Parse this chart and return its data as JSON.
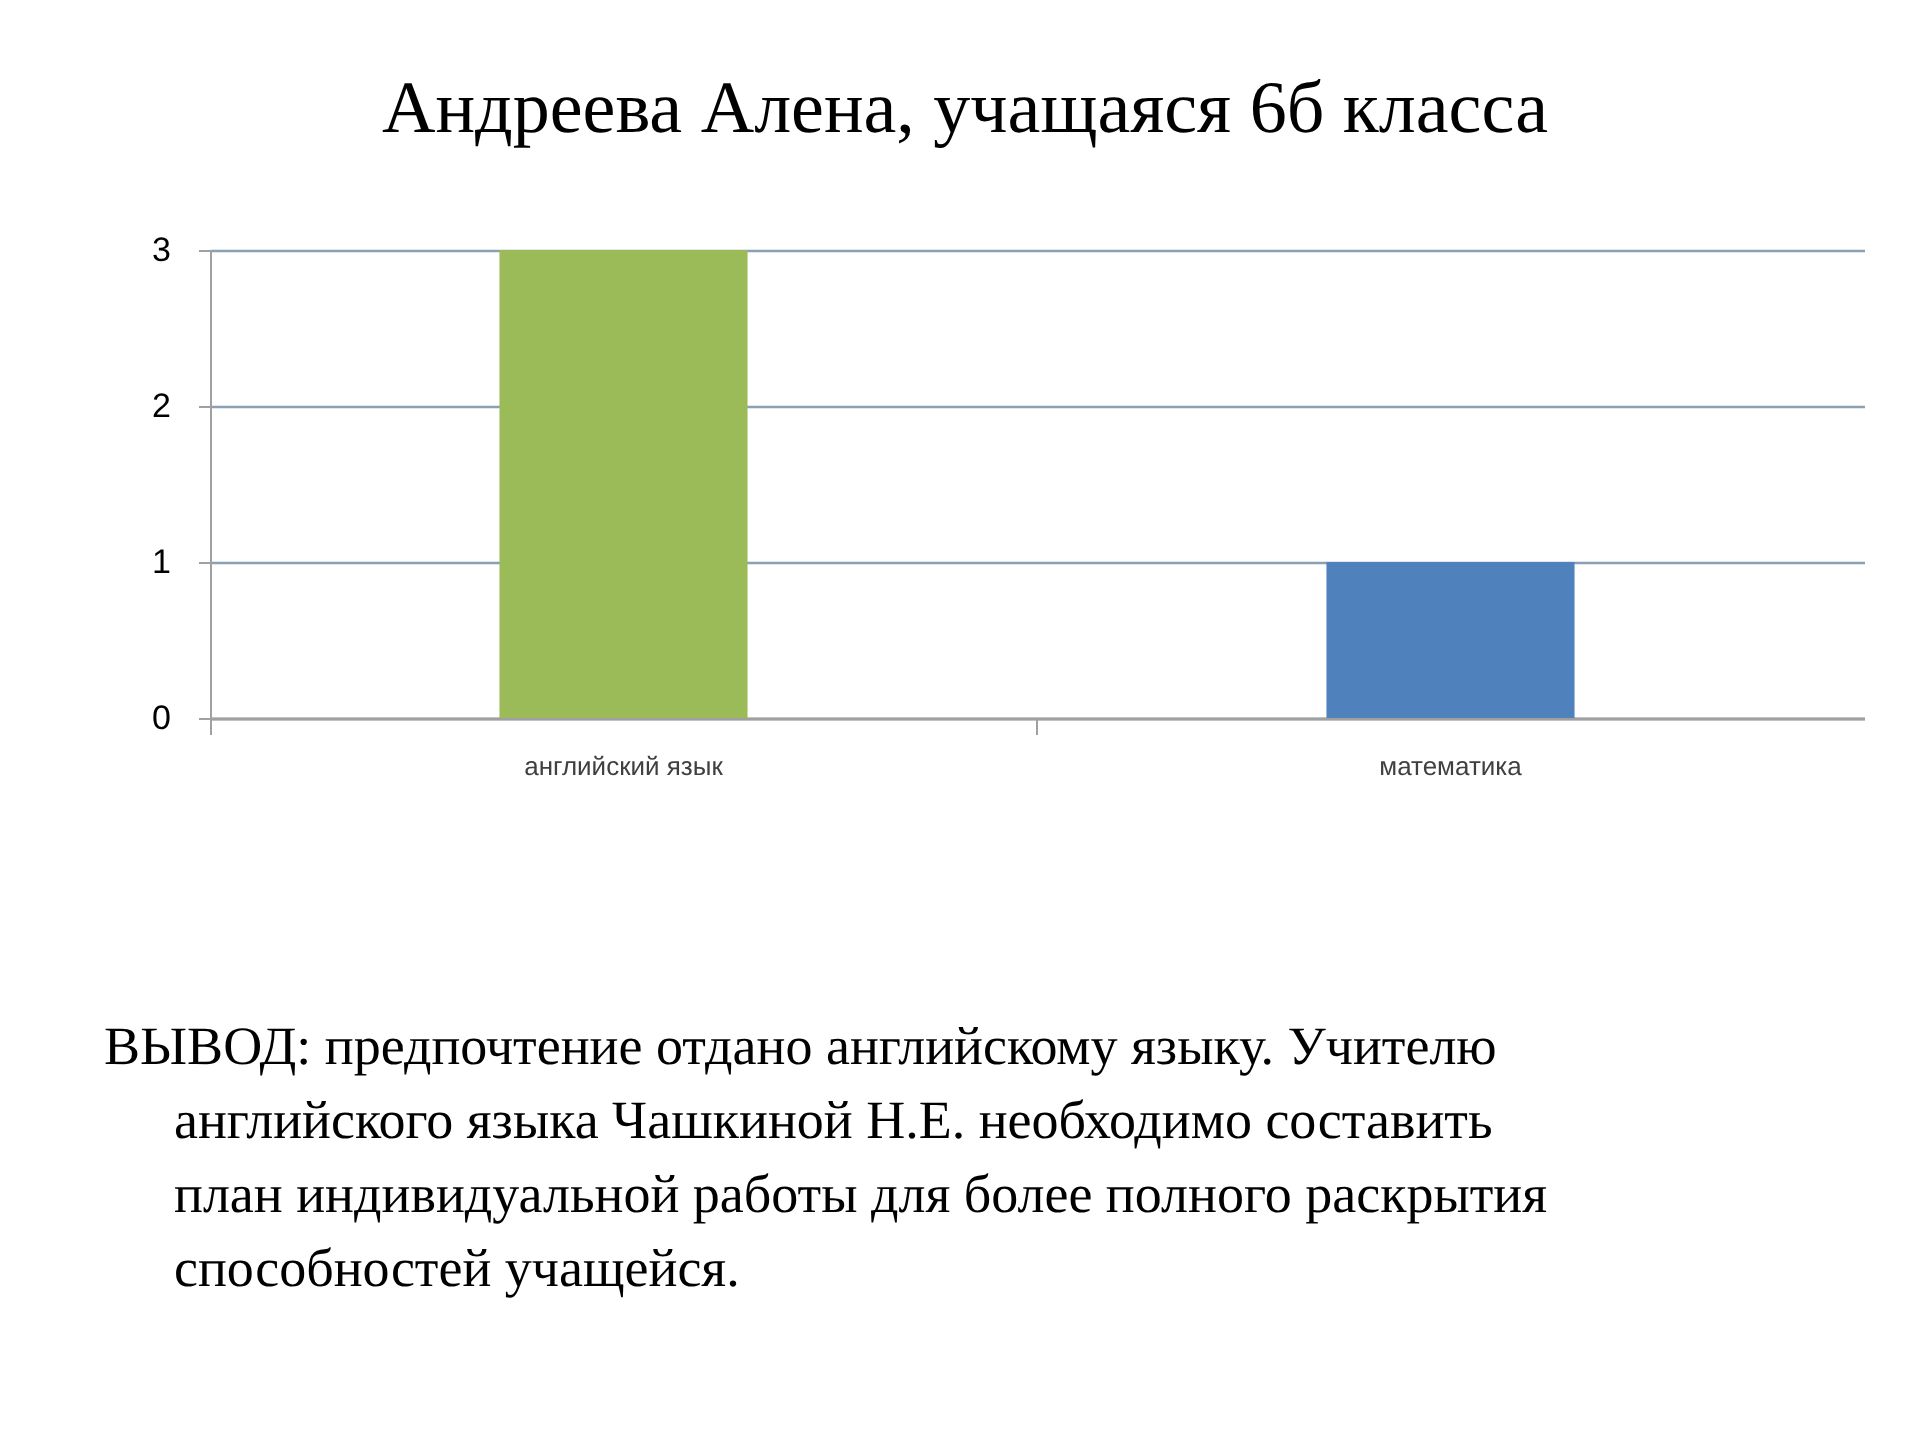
{
  "chart_data": {
    "type": "bar",
    "title": "Андреева Алена, учащаяся 6б класса",
    "categories": [
      "английский язык",
      "математика"
    ],
    "values": [
      3,
      1
    ],
    "colors": [
      "#9bbb59",
      "#4f81bd"
    ],
    "ylim": [
      0,
      3
    ],
    "yticks": [
      0,
      1,
      2,
      3
    ],
    "grid": "y",
    "annotations": [
      "ВЫВОД: предпочтение отдано английскому языку. Учителю английского языка Чашкиной Н.Е. необходимо составить план индивидуальной работы для более полного раскрытия способностей учащейся."
    ]
  }
}
